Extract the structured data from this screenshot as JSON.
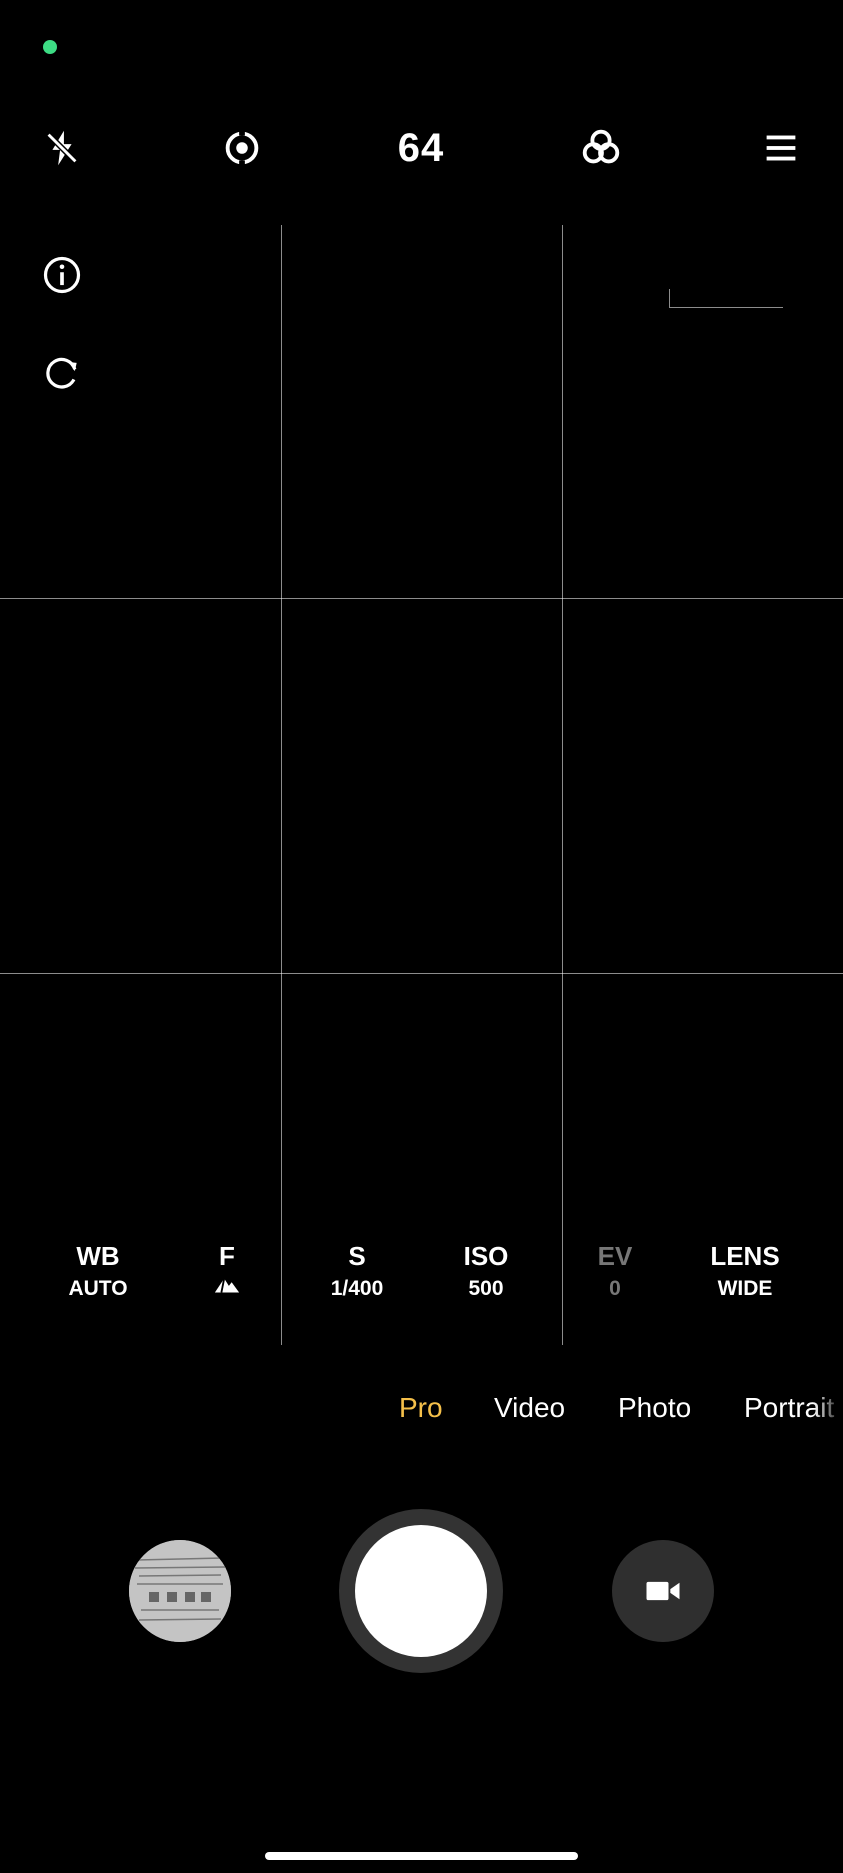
{
  "status": {
    "indicator_color": "#3ddc84"
  },
  "toolbar": {
    "flash_icon": "flash-off-icon",
    "focus_icon": "focus-target-icon",
    "megapixels": "64",
    "filters_icon": "filters-icon",
    "menu_icon": "menu-icon"
  },
  "side": {
    "info_icon": "info-icon",
    "rotate_icon": "rotate-icon"
  },
  "pro_controls": [
    {
      "label": "WB",
      "value": "AUTO",
      "dim": false
    },
    {
      "label": "F",
      "value": "",
      "value_icon": "focus-mountain-icon",
      "dim": false
    },
    {
      "label": "S",
      "value": "1/400",
      "dim": false
    },
    {
      "label": "ISO",
      "value": "500",
      "dim": false
    },
    {
      "label": "EV",
      "value": "0",
      "dim": true
    },
    {
      "label": "LENS",
      "value": "WIDE",
      "dim": false
    }
  ],
  "modes": [
    {
      "label": "Pro",
      "active": true
    },
    {
      "label": "Video",
      "active": false
    },
    {
      "label": "Photo",
      "active": false
    },
    {
      "label": "Portrait",
      "active": false
    }
  ],
  "colors": {
    "accent": "#f5c04a",
    "background": "#000000"
  }
}
